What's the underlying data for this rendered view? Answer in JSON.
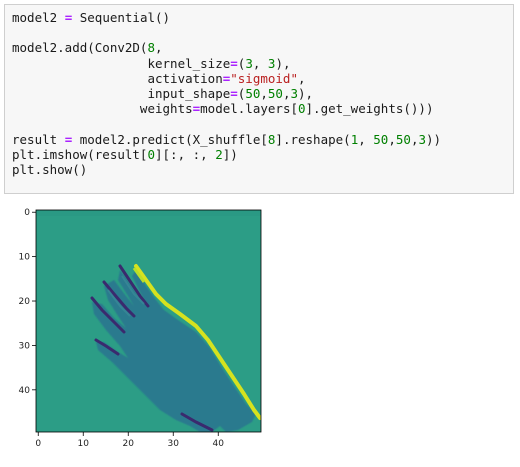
{
  "code_cell": {
    "lines": [
      [
        {
          "t": "model2 "
        },
        {
          "t": "=",
          "c": "op"
        },
        {
          "t": " Sequential()"
        }
      ],
      [],
      [
        {
          "t": "model2.add(Conv2D("
        },
        {
          "t": "8",
          "c": "num"
        },
        {
          "t": ","
        }
      ],
      [
        {
          "t": "                  kernel_size"
        },
        {
          "t": "=",
          "c": "op"
        },
        {
          "t": "("
        },
        {
          "t": "3",
          "c": "num"
        },
        {
          "t": ", "
        },
        {
          "t": "3",
          "c": "num"
        },
        {
          "t": "),"
        }
      ],
      [
        {
          "t": "                  activation"
        },
        {
          "t": "=",
          "c": "op"
        },
        {
          "t": "\"sigmoid\"",
          "c": "str"
        },
        {
          "t": ","
        }
      ],
      [
        {
          "t": "                  input_shape"
        },
        {
          "t": "=",
          "c": "op"
        },
        {
          "t": "("
        },
        {
          "t": "50",
          "c": "num"
        },
        {
          "t": ","
        },
        {
          "t": "50",
          "c": "num"
        },
        {
          "t": ","
        },
        {
          "t": "3",
          "c": "num"
        },
        {
          "t": "),"
        }
      ],
      [
        {
          "t": "                 weights"
        },
        {
          "t": "=",
          "c": "op"
        },
        {
          "t": "model.layers["
        },
        {
          "t": "0",
          "c": "num"
        },
        {
          "t": "].get_weights()))"
        }
      ],
      [],
      [
        {
          "t": "result "
        },
        {
          "t": "=",
          "c": "op"
        },
        {
          "t": " model2.predict(X_shuffle["
        },
        {
          "t": "8",
          "c": "num"
        },
        {
          "t": "].reshape("
        },
        {
          "t": "1",
          "c": "num"
        },
        {
          "t": ", "
        },
        {
          "t": "50",
          "c": "num"
        },
        {
          "t": ","
        },
        {
          "t": "50",
          "c": "num"
        },
        {
          "t": ","
        },
        {
          "t": "3",
          "c": "num"
        },
        {
          "t": "))"
        }
      ],
      [
        {
          "t": "plt.imshow(result["
        },
        {
          "t": "0",
          "c": "num"
        },
        {
          "t": "][:, :, "
        },
        {
          "t": "2",
          "c": "num"
        },
        {
          "t": "])"
        }
      ],
      [
        {
          "t": "plt.show()"
        }
      ]
    ]
  },
  "plot": {
    "x_ticks": [
      "0",
      "10",
      "20",
      "30",
      "40"
    ],
    "y_ticks": [
      "0",
      "10",
      "20",
      "30",
      "40"
    ],
    "colormap": "viridis",
    "colors": {
      "background": "#2c9d86",
      "hand_body": "#2a7a8e",
      "hand_edge_bright": "#d6e21f",
      "hand_edge_dark": "#3a2a6e"
    }
  }
}
